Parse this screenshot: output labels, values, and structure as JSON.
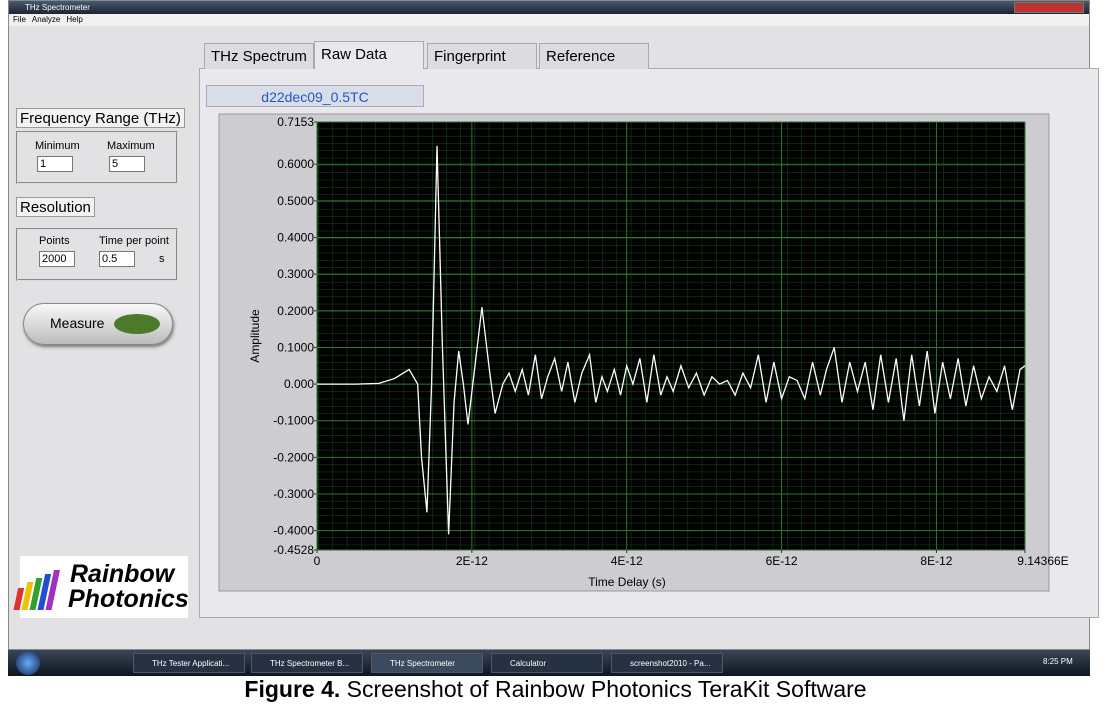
{
  "window": {
    "title": "THz Spectrometer",
    "menu": [
      "File",
      "Analyze",
      "Help"
    ]
  },
  "tabs": [
    "THz Spectrum",
    "Raw Data",
    "Fingerprint",
    "Reference"
  ],
  "file_name": "d22dec09_0.5TC",
  "frequency_range": {
    "title": "Frequency Range (THz)",
    "minimum_label": "Minimum",
    "maximum_label": "Maximum",
    "minimum": "1",
    "maximum": "5"
  },
  "resolution": {
    "title": "Resolution",
    "points_label": "Points",
    "time_label": "Time per point",
    "points": "2000",
    "time": "0.5",
    "unit": "s"
  },
  "measure_button": "Measure",
  "logo": [
    "Rainbow",
    "Photonics"
  ],
  "chart_data": {
    "type": "line",
    "x_label": "Time Delay (s)",
    "y_label": "Amplitude",
    "xlim": [
      0,
      9.14366e-12
    ],
    "ylim": [
      -0.4528,
      0.7153
    ],
    "xticks": [
      0,
      {
        "value": 2e-12,
        "label": "2E-12"
      },
      {
        "value": 4e-12,
        "label": "4E-12"
      },
      {
        "value": 6e-12,
        "label": "6E-12"
      },
      {
        "value": 8e-12,
        "label": "8E-12"
      },
      {
        "value": 9.14366e-12,
        "label": "9.14366E"
      }
    ],
    "yticks": [
      0.7153,
      {
        "value": 0.6,
        "label": "0.6000"
      },
      {
        "value": 0.5,
        "label": "0.5000"
      },
      {
        "value": 0.4,
        "label": "0.4000"
      },
      {
        "value": 0.3,
        "label": "0.3000"
      },
      {
        "value": 0.2,
        "label": "0.2000"
      },
      {
        "value": 0.1,
        "label": "0.1000"
      },
      {
        "value": 0,
        "label": "0.000"
      },
      {
        "value": -0.1,
        "label": "-0.1000"
      },
      {
        "value": -0.2,
        "label": "-0.2000"
      },
      {
        "value": -0.3,
        "label": "-0.3000"
      },
      {
        "value": -0.4,
        "label": "-0.4000"
      },
      -0.4528
    ],
    "grid": true,
    "color": "#ffffff",
    "x": [
      0,
      5e-13,
      8e-13,
      1e-12,
      1.19e-12,
      1.3e-12,
      1.35e-12,
      1.42e-12,
      1.48e-12,
      1.55e-12,
      1.62e-12,
      1.7e-12,
      1.77e-12,
      1.83e-12,
      1.89e-12,
      1.95e-12,
      2.04e-12,
      2.13e-12,
      2.22e-12,
      2.3e-12,
      2.4e-12,
      2.48e-12,
      2.56e-12,
      2.65e-12,
      2.73e-12,
      2.82e-12,
      2.9e-12,
      2.98e-12,
      3.07e-12,
      3.16e-12,
      3.24e-12,
      3.33e-12,
      3.42e-12,
      3.52e-12,
      3.6e-12,
      3.68e-12,
      3.75e-12,
      3.84e-12,
      3.92e-12,
      4e-12,
      4.08e-12,
      4.17e-12,
      4.26e-12,
      4.35e-12,
      4.44e-12,
      4.52e-12,
      4.6e-12,
      4.7e-12,
      4.8e-12,
      4.9e-12,
      5e-12,
      5.1e-12,
      5.2e-12,
      5.3e-12,
      5.4e-12,
      5.5e-12,
      5.6e-12,
      5.7e-12,
      5.8e-12,
      5.9e-12,
      6e-12,
      6.1e-12,
      6.2e-12,
      6.3e-12,
      6.4e-12,
      6.5e-12,
      6.58e-12,
      6.68e-12,
      6.78e-12,
      6.88e-12,
      6.98e-12,
      7.08e-12,
      7.18e-12,
      7.28e-12,
      7.38e-12,
      7.48e-12,
      7.58e-12,
      7.68e-12,
      7.78e-12,
      7.88e-12,
      7.98e-12,
      8.08e-12,
      8.18e-12,
      8.28e-12,
      8.38e-12,
      8.48e-12,
      8.58e-12,
      8.68e-12,
      8.78e-12,
      8.88e-12,
      8.98e-12,
      9.08e-12,
      9.14366e-12
    ],
    "values": [
      0,
      0,
      0.002,
      0.015,
      0.04,
      0.0,
      -0.2,
      -0.35,
      0.0,
      0.65,
      0.1,
      -0.41,
      -0.05,
      0.09,
      0.0,
      -0.11,
      0.05,
      0.21,
      0.05,
      -0.08,
      0.0,
      0.03,
      -0.02,
      0.04,
      -0.03,
      0.08,
      -0.04,
      0.02,
      0.07,
      -0.02,
      0.06,
      -0.05,
      0.03,
      0.08,
      -0.05,
      0.02,
      -0.02,
      0.04,
      -0.03,
      0.05,
      0.0,
      0.07,
      -0.05,
      0.08,
      -0.03,
      0.02,
      -0.02,
      0.05,
      -0.01,
      0.03,
      -0.03,
      0.02,
      0.0,
      0.01,
      -0.03,
      0.03,
      -0.01,
      0.08,
      -0.05,
      0.06,
      -0.04,
      0.02,
      0.01,
      -0.04,
      0.06,
      -0.03,
      0.04,
      0.1,
      -0.05,
      0.06,
      -0.02,
      0.06,
      -0.07,
      0.08,
      -0.05,
      0.07,
      -0.1,
      0.08,
      -0.06,
      0.09,
      -0.08,
      0.06,
      -0.04,
      0.07,
      -0.06,
      0.05,
      -0.04,
      0.02,
      -0.02,
      0.05,
      -0.07,
      0.04,
      0.05
    ]
  },
  "taskbar": {
    "items": [
      "THz Tester Applicati...",
      "THz Spectrometer B...",
      "THz Spectrometer",
      "Calculator",
      "screenshot2010 - Pa..."
    ],
    "clock": "8:25 PM"
  },
  "caption": {
    "label": "Figure 4.",
    "text": " Screenshot of Rainbow Photonics TeraKit Software"
  }
}
